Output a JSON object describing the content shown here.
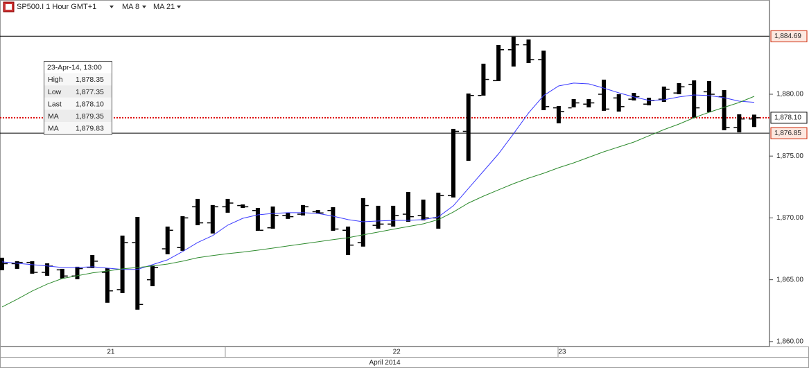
{
  "chart_data": {
    "type": "ohlc",
    "title": "SP500.I 1 Hour GMT+1",
    "x_axis_label": "April 2014",
    "categories": [
      null,
      null,
      null,
      null,
      null,
      null,
      null,
      "21",
      null,
      null,
      null,
      null,
      null,
      null,
      null,
      null,
      null,
      null,
      null,
      null,
      null,
      null,
      null,
      null,
      null,
      null,
      "22",
      null,
      null,
      null,
      null,
      null,
      null,
      null,
      null,
      null,
      null,
      "23",
      null,
      null,
      null,
      null,
      null,
      null,
      null,
      null,
      null,
      null,
      null,
      null,
      null
    ],
    "open": [
      1866.5,
      1866.3,
      1866.4,
      1865.6,
      1865.8,
      1865.3,
      1866.0,
      1865.6,
      1864.2,
      1868.0,
      1865.0,
      1867.5,
      1867.6,
      1870.9,
      1869.6,
      1870.9,
      1871.0,
      1870.6,
      1869.2,
      1870.2,
      1870.3,
      1870.5,
      1870.6,
      1869.0,
      1868.0,
      1869.4,
      1869.5,
      1870.3,
      1870.2,
      1870.0,
      1871.8,
      1877.0,
      1879.9,
      1881.1,
      1883.6,
      1884.0,
      1882.8,
      1878.9,
      1878.9,
      1879.2,
      1880.0,
      1879.7,
      1879.6,
      1879.2,
      1879.6,
      1880.1,
      1880.8,
      1880.2,
      1879.8,
      1877.3,
      1878.0
    ],
    "high": [
      1866.78,
      1866.5,
      1866.5,
      1866.33,
      1865.88,
      1866.05,
      1867.0,
      1865.94,
      1868.57,
      1870.08,
      1866.16,
      1869.3,
      1870.14,
      1871.54,
      1871.04,
      1871.54,
      1871.09,
      1870.81,
      1870.92,
      1870.42,
      1871.04,
      1870.64,
      1870.87,
      1869.3,
      1871.6,
      1870.98,
      1870.98,
      1872.1,
      1871.48,
      1872.04,
      1877.2,
      1880.06,
      1882.47,
      1883.98,
      1884.65,
      1884.43,
      1883.53,
      1879.05,
      1879.61,
      1879.61,
      1881.18,
      1880.0,
      1880.11,
      1879.72,
      1880.62,
      1880.9,
      1881.12,
      1881.06,
      1880.34,
      1878.38,
      1878.35
    ],
    "low": [
      1865.77,
      1865.88,
      1865.49,
      1865.32,
      1865.1,
      1865.04,
      1865.94,
      1863.14,
      1863.92,
      1862.58,
      1864.48,
      1867.06,
      1867.34,
      1869.41,
      1868.74,
      1870.42,
      1870.81,
      1868.96,
      1869.13,
      1869.92,
      1870.2,
      1870.36,
      1868.96,
      1867.0,
      1867.68,
      1869.13,
      1869.3,
      1869.69,
      1869.8,
      1869.13,
      1871.65,
      1874.62,
      1879.89,
      1881.06,
      1882.24,
      1882.52,
      1878.71,
      1877.65,
      1878.94,
      1878.94,
      1878.66,
      1878.6,
      1879.5,
      1879.1,
      1879.38,
      1880.0,
      1878.1,
      1878.54,
      1877.09,
      1876.92,
      1877.35
    ],
    "close": [
      1866.3,
      1866.4,
      1865.6,
      1866.1,
      1865.3,
      1865.9,
      1866.5,
      1864.1,
      1868.0,
      1863.0,
      1866.0,
      1869.0,
      1870.0,
      1869.6,
      1870.9,
      1871.2,
      1870.9,
      1869.0,
      1870.2,
      1870.1,
      1870.9,
      1870.4,
      1869.1,
      1867.8,
      1871.0,
      1869.5,
      1870.2,
      1870.1,
      1870.0,
      1871.8,
      1877.0,
      1879.9,
      1881.2,
      1883.6,
      1884.0,
      1882.8,
      1879.0,
      1878.6,
      1879.3,
      1879.3,
      1878.8,
      1879.0,
      1879.8,
      1879.5,
      1880.4,
      1880.6,
      1878.9,
      1880.0,
      1877.3,
      1878.0,
      1878.1
    ],
    "bar_color": "#000000",
    "series": [
      {
        "name": "MA 8",
        "color": "#3a3aff",
        "values": [
          1866.44,
          1866.33,
          1866.22,
          1866.11,
          1865.99,
          1865.99,
          1866.05,
          1865.94,
          1865.83,
          1865.83,
          1866.22,
          1866.61,
          1867.28,
          1868.01,
          1868.57,
          1869.41,
          1869.97,
          1870.25,
          1870.36,
          1870.42,
          1870.42,
          1870.36,
          1870.14,
          1869.86,
          1869.69,
          1869.75,
          1869.8,
          1869.8,
          1869.86,
          1870.08,
          1870.98,
          1872.38,
          1873.78,
          1875.18,
          1876.81,
          1878.49,
          1879.89,
          1880.67,
          1880.9,
          1880.84,
          1880.5,
          1880.11,
          1879.78,
          1879.5,
          1879.55,
          1879.78,
          1879.94,
          1879.89,
          1879.72,
          1879.44,
          1879.35
        ]
      },
      {
        "name": "MA 21",
        "color": "#2e8b2e",
        "values": [
          1862.8,
          1863.42,
          1864.09,
          1864.65,
          1865.1,
          1865.32,
          1865.55,
          1865.71,
          1865.88,
          1865.99,
          1866.11,
          1866.27,
          1866.5,
          1866.78,
          1866.95,
          1867.11,
          1867.23,
          1867.39,
          1867.56,
          1867.73,
          1867.9,
          1868.07,
          1868.24,
          1868.4,
          1868.63,
          1868.85,
          1869.08,
          1869.3,
          1869.52,
          1869.86,
          1870.48,
          1871.2,
          1871.76,
          1872.27,
          1872.77,
          1873.22,
          1873.61,
          1874.06,
          1874.45,
          1874.9,
          1875.35,
          1875.74,
          1876.13,
          1876.64,
          1877.14,
          1877.59,
          1878.1,
          1878.54,
          1878.94,
          1879.33,
          1879.83
        ]
      }
    ],
    "ylim": [
      1859.6,
      1887.62
    ],
    "yticks": [
      {
        "value": 1860,
        "label": "1,860.00"
      },
      {
        "value": 1865,
        "label": "1,865.00"
      },
      {
        "value": 1870,
        "label": "1,870.00"
      },
      {
        "value": 1875,
        "label": "1,875.00"
      },
      {
        "value": 1880,
        "label": "1,880.00"
      }
    ],
    "reference_lines": [
      {
        "value": 1884.69,
        "label": "1,884.69",
        "color": "#000000",
        "label_color": "#cc2200",
        "style": "solid"
      },
      {
        "value": 1878.1,
        "label": "1,878.10",
        "color": "#dd0000",
        "label_color": "#000000",
        "style": "dotted"
      },
      {
        "value": 1876.85,
        "label": "1,876.85",
        "color": "#000000",
        "label_color": "#cc2200",
        "style": "solid"
      }
    ],
    "info_box": {
      "title": "23-Apr-14, 13:00",
      "rows": [
        [
          "High",
          "1,878.35"
        ],
        [
          "Low",
          "1,877.35"
        ],
        [
          "Last",
          "1,878.10"
        ],
        [
          "MA",
          "1,879.35"
        ],
        [
          "MA",
          "1,879.83"
        ]
      ]
    }
  }
}
